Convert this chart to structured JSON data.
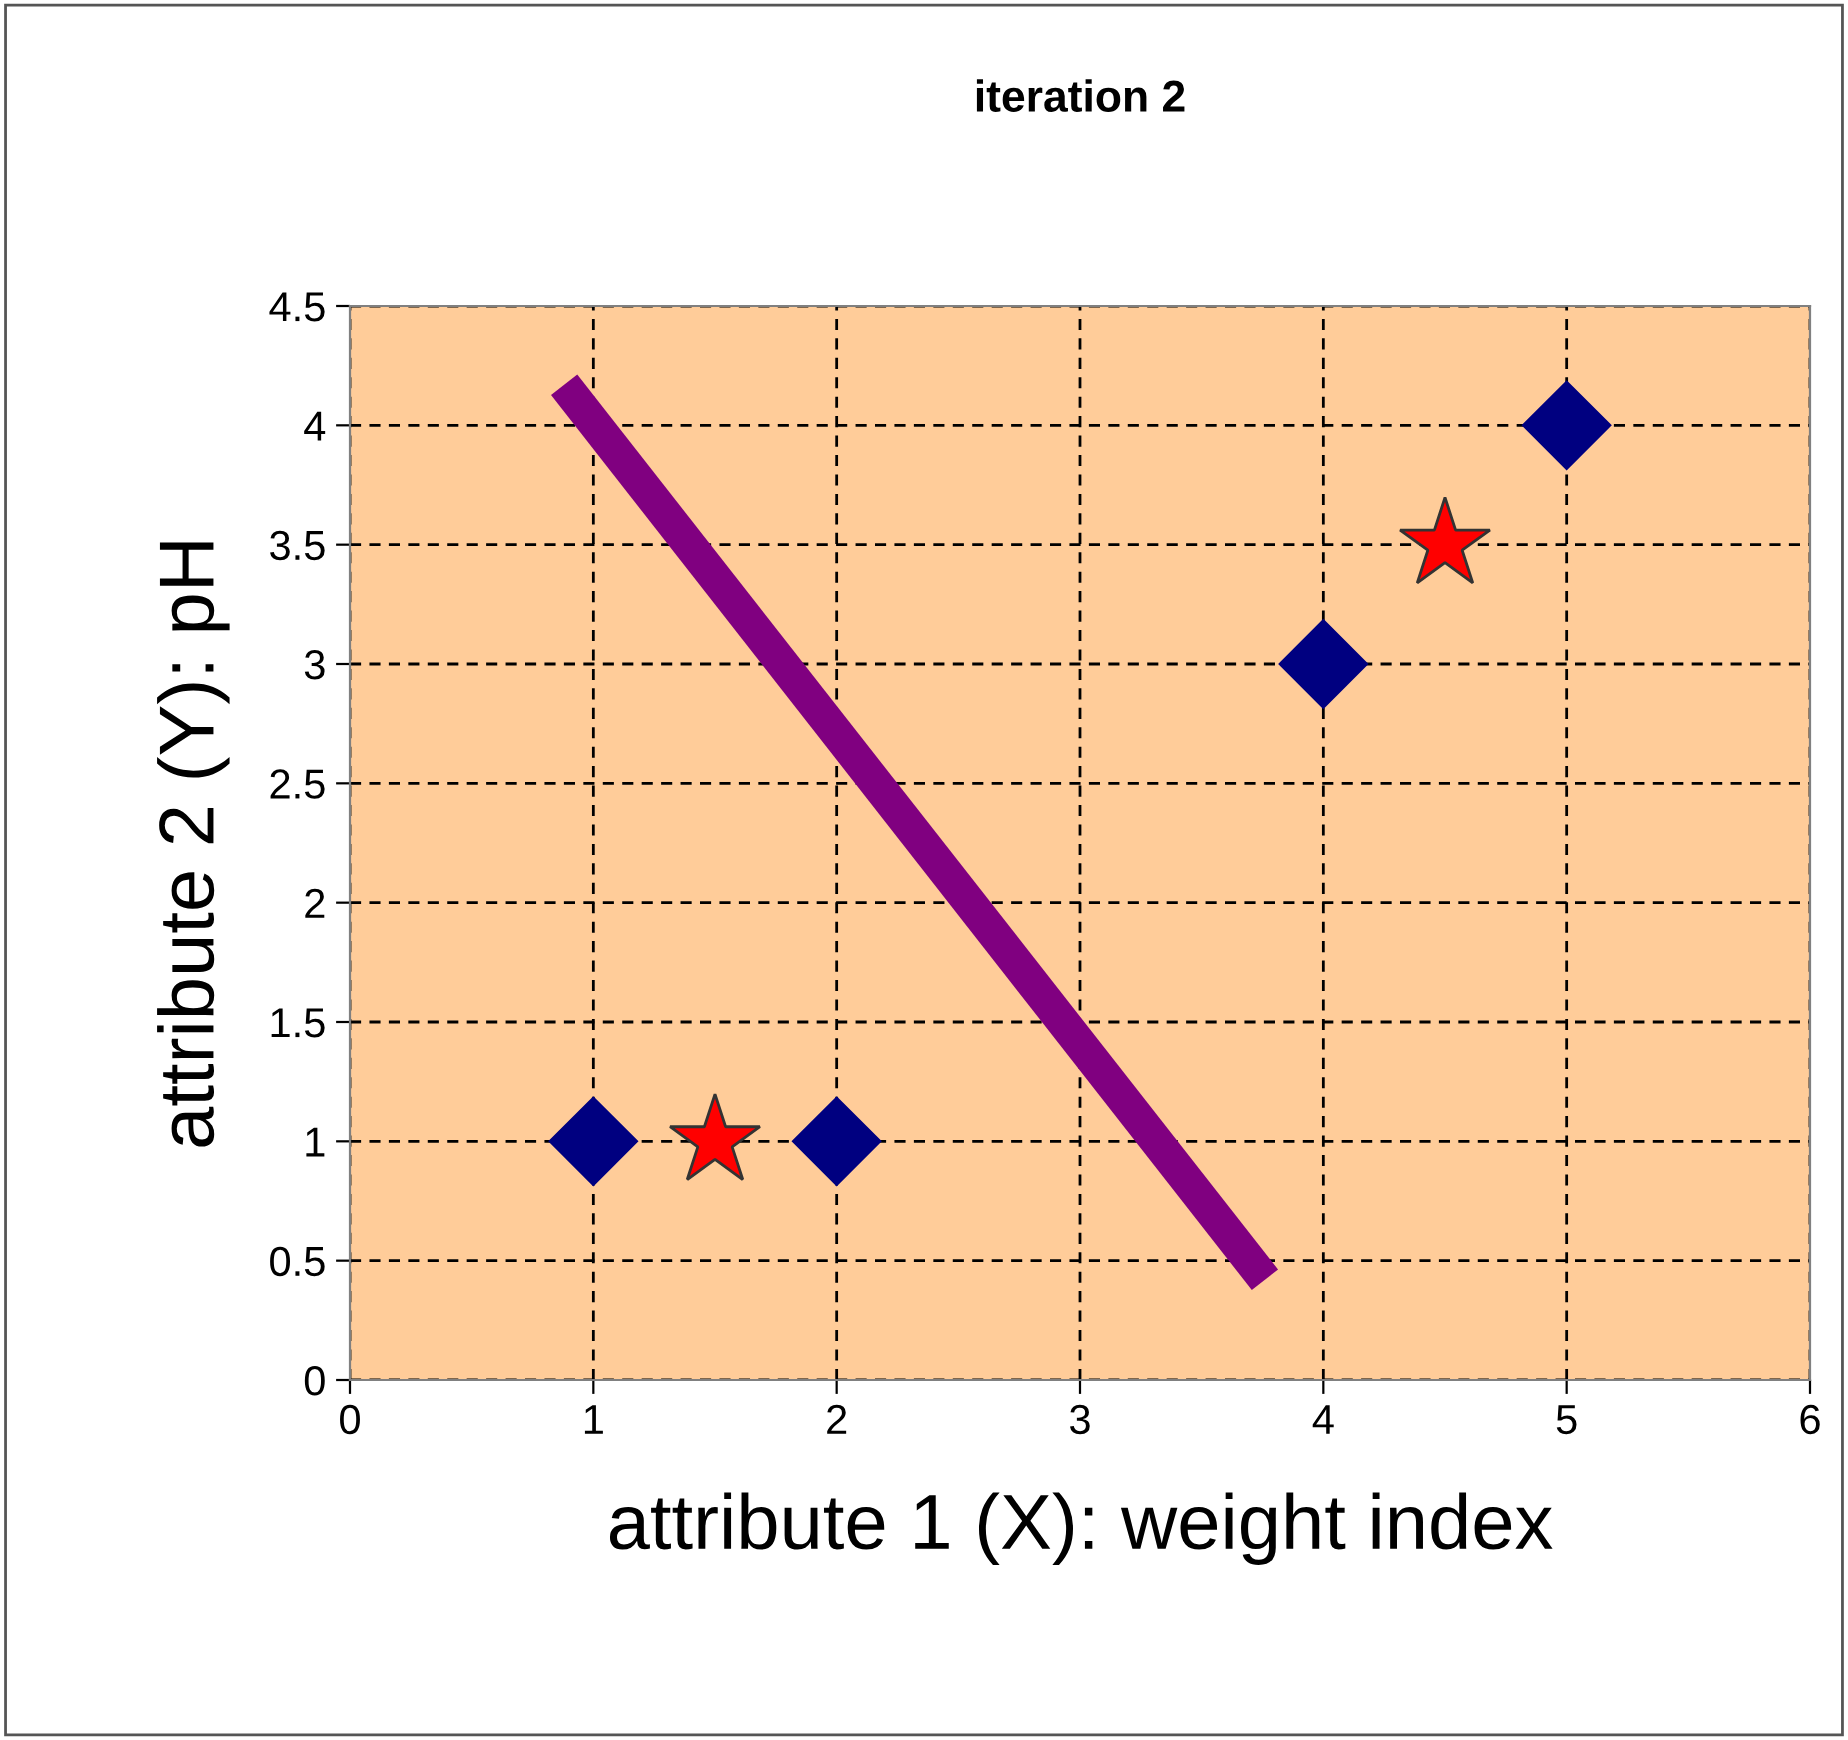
{
  "chart_data": {
    "type": "scatter",
    "title": "iteration 2",
    "xlabel": "attribute 1 (X): weight index",
    "ylabel": "attribute 2 (Y): pH",
    "xlim": [
      0,
      6
    ],
    "xticks": [
      0,
      1,
      2,
      3,
      4,
      5,
      6
    ],
    "ylim": [
      0,
      4.5
    ],
    "yticks": [
      0,
      0.5,
      1,
      1.5,
      2,
      2.5,
      3,
      3.5,
      4,
      4.5
    ],
    "grid": true,
    "legend": false,
    "series": [
      {
        "color": "#000080",
        "marker": "diamond",
        "x": [
          1,
          2,
          4,
          5
        ],
        "values": [
          1,
          1,
          3,
          4
        ]
      },
      {
        "color": "#ff0000",
        "marker": "star",
        "x": [
          1.5,
          4.5
        ],
        "values": [
          1,
          3.5
        ]
      },
      {
        "type": "line",
        "color": "#800080",
        "marker": "none",
        "line_style": "solid",
        "x": [
          0.88,
          3.76
        ],
        "values": [
          4.17,
          0.42
        ]
      }
    ]
  }
}
